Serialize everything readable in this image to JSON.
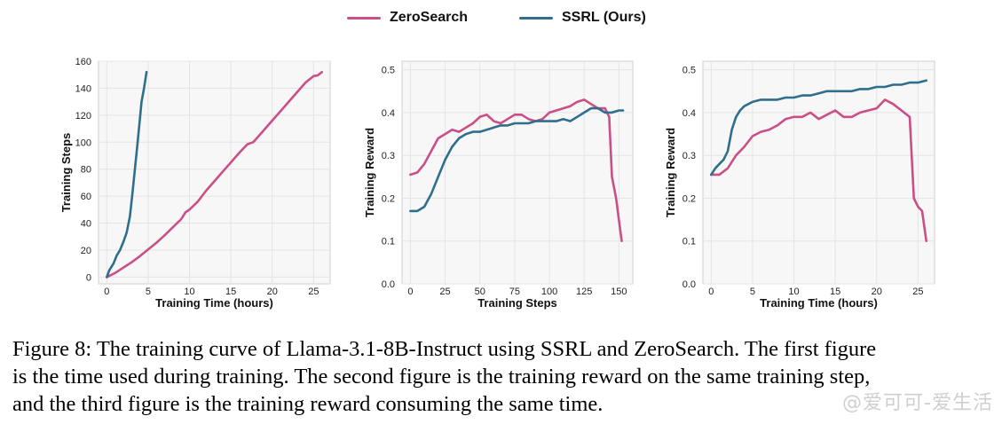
{
  "colors": {
    "zerosearch": "#c94f86",
    "ssrl": "#2f6e8c",
    "plot_bg": "#f7f7f7",
    "grid": "#e4e4e4"
  },
  "legend": [
    {
      "name": "ZeroSearch",
      "color": "#c94f86"
    },
    {
      "name": "SSRL (Ours)",
      "color": "#2f6e8c"
    }
  ],
  "chart_data": [
    {
      "type": "line",
      "xlabel": "Training Time (hours)",
      "ylabel": "Training Steps",
      "xlim": [
        -1,
        27
      ],
      "ylim": [
        -5,
        160
      ],
      "xticks": [
        0,
        5,
        10,
        15,
        20,
        25
      ],
      "yticks": [
        0,
        20,
        40,
        60,
        80,
        100,
        120,
        140,
        160
      ],
      "grid": true,
      "series": [
        {
          "name": "ZeroSearch",
          "x": [
            0,
            1,
            2,
            3,
            4,
            5,
            6,
            7,
            8,
            9,
            9.5,
            10,
            11,
            12,
            13,
            14,
            15,
            16,
            17,
            17.7,
            18,
            19,
            20,
            21,
            22,
            23,
            24,
            25,
            25.5,
            26
          ],
          "y": [
            0,
            3,
            7,
            11,
            15.5,
            20.5,
            25.5,
            31,
            37,
            43,
            48,
            50,
            56,
            64,
            71,
            78,
            85,
            92,
            98.5,
            100,
            102,
            109,
            116,
            123,
            130,
            137,
            144,
            149,
            149.5,
            152
          ]
        },
        {
          "name": "SSRL (Ours)",
          "x": [
            0,
            0.3,
            0.8,
            1.2,
            1.6,
            2,
            2.4,
            2.8,
            3.1,
            3.4,
            3.7,
            4,
            4.2,
            4.5,
            4.8
          ],
          "y": [
            0,
            5,
            10,
            16,
            20,
            26,
            33,
            45,
            62,
            80,
            98,
            117,
            130,
            140,
            152
          ]
        }
      ]
    },
    {
      "type": "line",
      "xlabel": "Training Steps",
      "ylabel": "Training Reward",
      "xlim": [
        -6,
        160
      ],
      "ylim": [
        0.0,
        0.52
      ],
      "xticks": [
        0,
        25,
        50,
        75,
        100,
        125,
        150
      ],
      "yticks": [
        0.0,
        0.1,
        0.2,
        0.3,
        0.4,
        0.5
      ],
      "grid": true,
      "series": [
        {
          "name": "ZeroSearch",
          "x": [
            0,
            5,
            10,
            15,
            20,
            25,
            30,
            35,
            40,
            45,
            50,
            55,
            60,
            65,
            70,
            75,
            80,
            85,
            90,
            95,
            100,
            105,
            110,
            115,
            120,
            125,
            130,
            135,
            140,
            143,
            145,
            148,
            150,
            152
          ],
          "y": [
            0.255,
            0.26,
            0.28,
            0.31,
            0.34,
            0.35,
            0.36,
            0.355,
            0.365,
            0.375,
            0.39,
            0.395,
            0.38,
            0.375,
            0.385,
            0.395,
            0.395,
            0.385,
            0.38,
            0.385,
            0.4,
            0.405,
            0.41,
            0.415,
            0.425,
            0.43,
            0.42,
            0.41,
            0.41,
            0.39,
            0.25,
            0.2,
            0.15,
            0.1
          ]
        },
        {
          "name": "SSRL (Ours)",
          "x": [
            0,
            5,
            10,
            15,
            20,
            25,
            30,
            35,
            40,
            45,
            50,
            55,
            60,
            65,
            70,
            75,
            80,
            85,
            90,
            95,
            100,
            105,
            110,
            115,
            120,
            125,
            130,
            135,
            140,
            145,
            150,
            153
          ],
          "y": [
            0.17,
            0.17,
            0.18,
            0.21,
            0.25,
            0.29,
            0.32,
            0.34,
            0.35,
            0.355,
            0.355,
            0.36,
            0.365,
            0.37,
            0.37,
            0.375,
            0.375,
            0.375,
            0.38,
            0.38,
            0.38,
            0.38,
            0.385,
            0.38,
            0.39,
            0.4,
            0.41,
            0.41,
            0.4,
            0.4,
            0.405,
            0.405
          ]
        }
      ]
    },
    {
      "type": "line",
      "xlabel": "Training Time (hours)",
      "ylabel": "Training Reward",
      "xlim": [
        -1,
        27
      ],
      "ylim": [
        0.0,
        0.52
      ],
      "xticks": [
        0,
        5,
        10,
        15,
        20,
        25
      ],
      "yticks": [
        0.0,
        0.1,
        0.2,
        0.3,
        0.4,
        0.5
      ],
      "grid": true,
      "series": [
        {
          "name": "ZeroSearch",
          "x": [
            0,
            1,
            2,
            3,
            4,
            5,
            6,
            7,
            8,
            9,
            10,
            11,
            12,
            13,
            14,
            15,
            16,
            17,
            18,
            19,
            20,
            21,
            22,
            23,
            24,
            24.5,
            25,
            25.5,
            26
          ],
          "y": [
            0.255,
            0.255,
            0.27,
            0.3,
            0.32,
            0.345,
            0.355,
            0.36,
            0.37,
            0.385,
            0.39,
            0.39,
            0.4,
            0.385,
            0.395,
            0.405,
            0.39,
            0.39,
            0.4,
            0.405,
            0.41,
            0.43,
            0.42,
            0.405,
            0.39,
            0.2,
            0.18,
            0.17,
            0.1
          ]
        },
        {
          "name": "SSRL (Ours)",
          "x": [
            0,
            0.5,
            1,
            1.5,
            2,
            2.5,
            3,
            3.5,
            4,
            5,
            6,
            7,
            8,
            9,
            10,
            11,
            12,
            13,
            14,
            15,
            16,
            17,
            18,
            19,
            20,
            21,
            22,
            23,
            24,
            25,
            26
          ],
          "y": [
            0.255,
            0.27,
            0.28,
            0.29,
            0.31,
            0.36,
            0.39,
            0.405,
            0.415,
            0.425,
            0.43,
            0.43,
            0.43,
            0.435,
            0.435,
            0.44,
            0.44,
            0.445,
            0.45,
            0.45,
            0.45,
            0.45,
            0.455,
            0.455,
            0.46,
            0.46,
            0.465,
            0.465,
            0.47,
            0.47,
            0.475
          ]
        }
      ]
    }
  ],
  "caption": {
    "line1": "Figure 8: The training curve of Llama-3.1-8B-Instruct using SSRL and ZeroSearch. The first figure",
    "line2": "is the time used during training. The second figure is the training reward on the same training step,",
    "line3": "and the third figure is the training reward consuming the same time."
  },
  "watermark": "@爱可可-爱生活"
}
